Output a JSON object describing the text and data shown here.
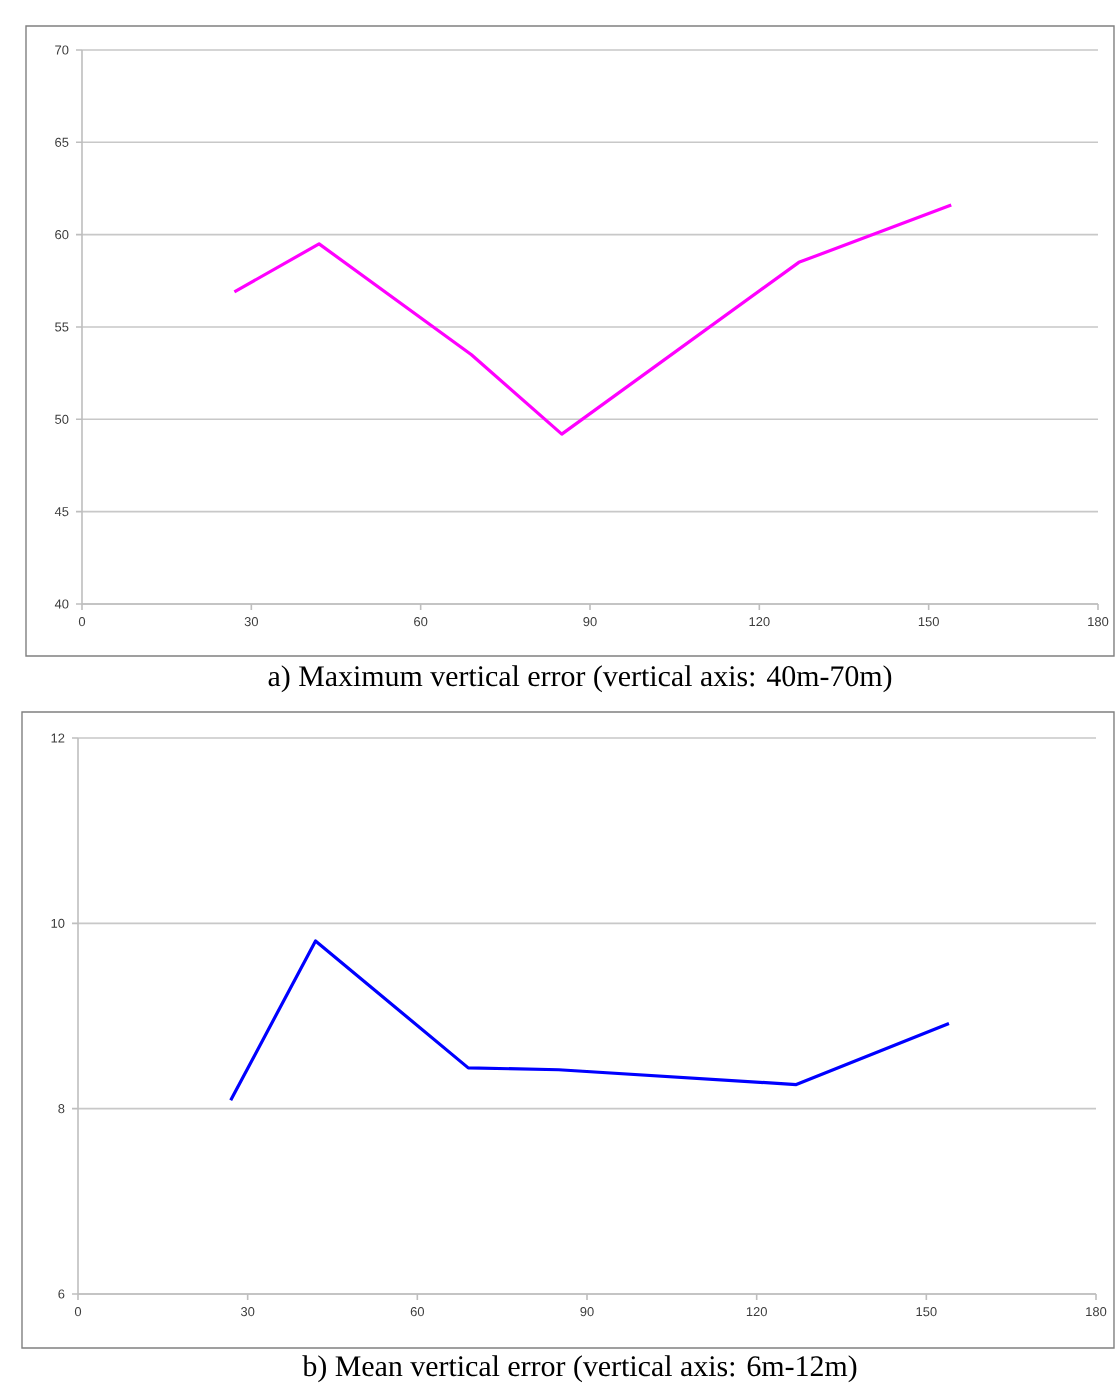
{
  "chart_data": [
    {
      "type": "line",
      "title": "a) Maximum vertical error (vertical axis: 40m-70m)",
      "x": [
        27,
        42,
        69,
        85,
        127,
        154
      ],
      "xlim": [
        0,
        180
      ],
      "xticks": [
        0,
        30,
        60,
        90,
        120,
        150,
        180
      ],
      "ylim": [
        40,
        70
      ],
      "yticks": [
        40,
        45,
        50,
        55,
        60,
        65,
        70
      ],
      "grid": "y",
      "series": [
        {
          "color": "#ff00ff",
          "values": [
            56.9,
            59.5,
            53.5,
            49.2,
            58.5,
            61.6
          ]
        }
      ]
    },
    {
      "type": "line",
      "title": "b) Mean vertical error (vertical axis: 6m-12m)",
      "x": [
        27,
        42,
        69,
        85,
        127,
        154
      ],
      "xlim": [
        0,
        180
      ],
      "xticks": [
        0,
        30,
        60,
        90,
        120,
        150,
        180
      ],
      "ylim": [
        6,
        12
      ],
      "yticks": [
        6,
        8,
        10,
        12
      ],
      "grid": "y",
      "series": [
        {
          "color": "#0000ff",
          "values": [
            8.09,
            9.81,
            8.44,
            8.42,
            8.26,
            8.92
          ]
        }
      ]
    }
  ]
}
